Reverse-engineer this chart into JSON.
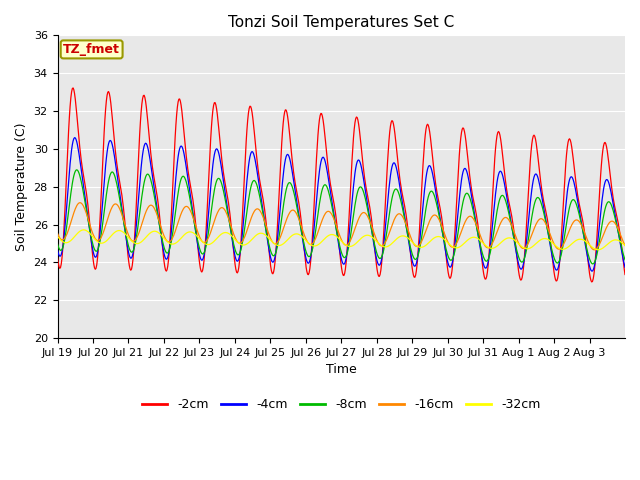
{
  "title": "Tonzi Soil Temperatures Set C",
  "xlabel": "Time",
  "ylabel": "Soil Temperature (C)",
  "ylim": [
    20,
    36
  ],
  "n_days": 16,
  "tick_labels": [
    "Jul 19",
    "Jul 20",
    "Jul 21",
    "Jul 22",
    "Jul 23",
    "Jul 24",
    "Jul 25",
    "Jul 26",
    "Jul 27",
    "Jul 28",
    "Jul 29",
    "Jul 30",
    "Jul 31",
    "Aug 1",
    "Aug 2",
    "Aug 3"
  ],
  "series": {
    "-2cm": {
      "color": "#ff0000",
      "amplitude": 5.5,
      "mean": 28.5,
      "phase_shift": 0.0,
      "trend": -0.12,
      "asym": 3.0
    },
    "-4cm": {
      "color": "#0000ff",
      "amplitude": 3.5,
      "mean": 27.5,
      "phase_shift": 0.18,
      "trend": -0.1,
      "asym": 1.5
    },
    "-8cm": {
      "color": "#00bb00",
      "amplitude": 2.3,
      "mean": 26.8,
      "phase_shift": 0.42,
      "trend": -0.08,
      "asym": 0.8
    },
    "-16cm": {
      "color": "#ff8800",
      "amplitude": 1.0,
      "mean": 26.2,
      "phase_shift": 0.85,
      "trend": -0.05,
      "asym": 0.0
    },
    "-32cm": {
      "color": "#ffff00",
      "amplitude": 0.35,
      "mean": 25.4,
      "phase_shift": 1.5,
      "trend": -0.03,
      "asym": 0.0
    }
  },
  "label_box": {
    "text": "TZ_fmet",
    "bg_color": "#ffffcc",
    "text_color": "#cc0000",
    "border_color": "#999900"
  },
  "plot_bg": "#e8e8e8",
  "grid_color": "#ffffff",
  "title_fontsize": 11,
  "axis_label_fontsize": 9,
  "tick_fontsize": 8,
  "legend_fontsize": 9
}
